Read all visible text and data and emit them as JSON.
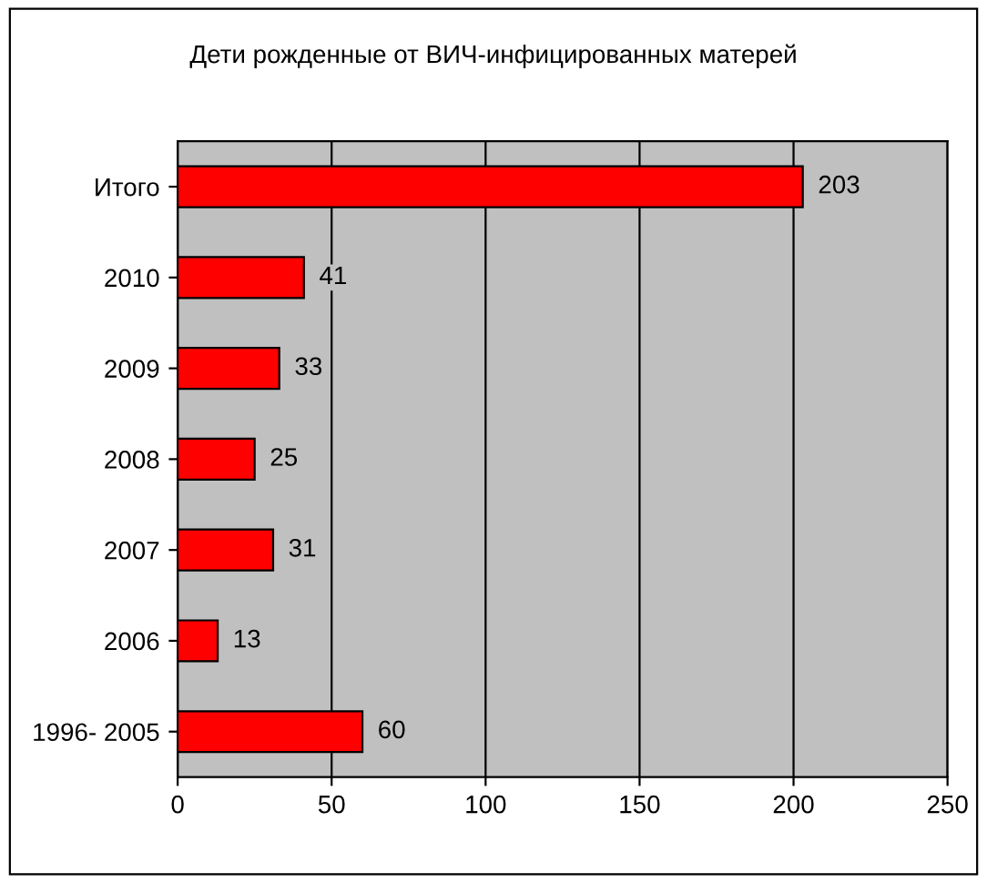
{
  "chart_data": {
    "type": "bar",
    "orientation": "horizontal",
    "title": "Дети рожденные от ВИЧ-инфицированных матерей",
    "categories": [
      "Итого",
      "2010",
      "2009",
      "2008",
      "2007",
      "2006",
      "1996- 2005"
    ],
    "values": [
      203,
      41,
      33,
      25,
      31,
      13,
      60
    ],
    "color": "#ff0000",
    "data_labels": true,
    "xlim": [
      0,
      250
    ],
    "xticks": [
      0,
      50,
      100,
      150,
      200,
      250
    ],
    "grid": "x"
  }
}
